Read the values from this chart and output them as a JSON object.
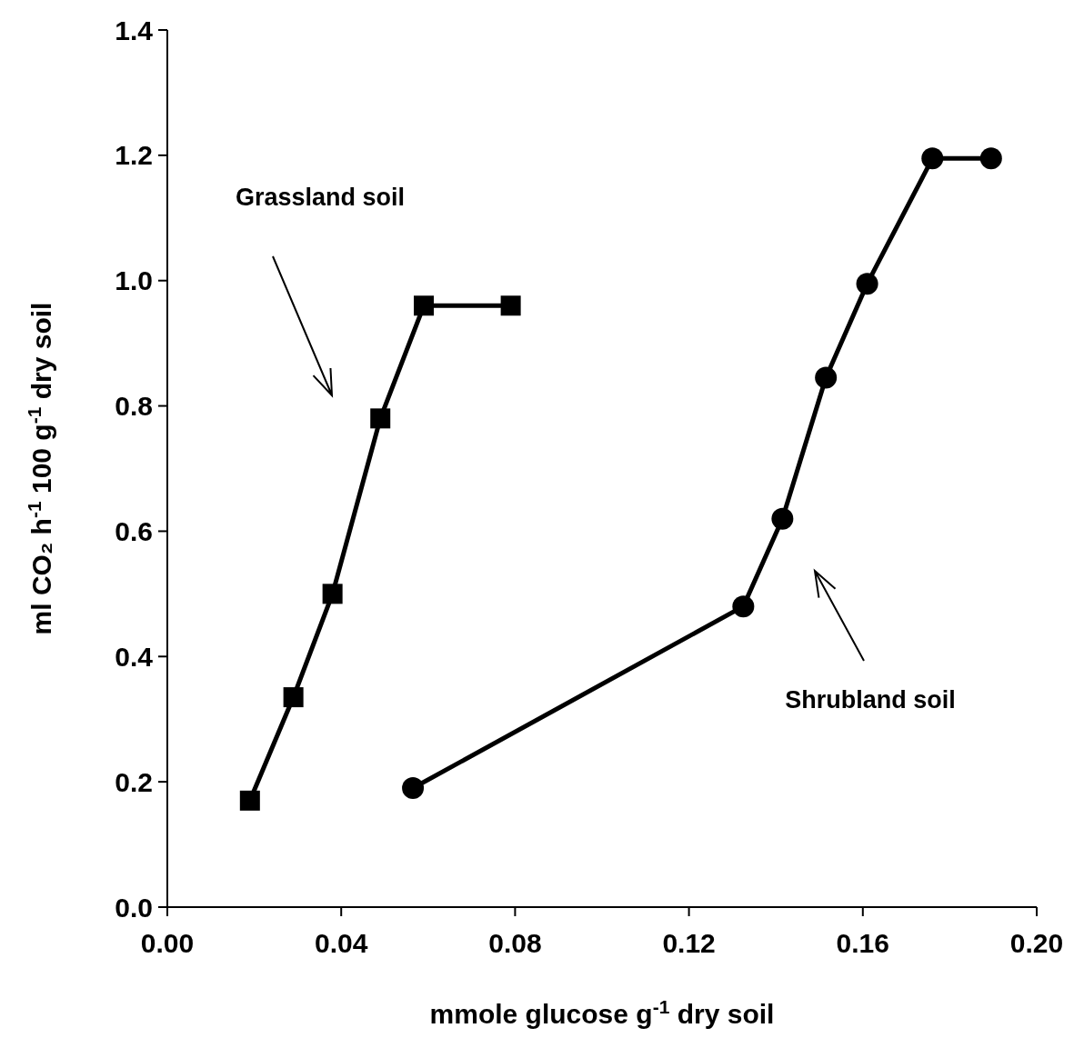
{
  "chart_data": {
    "type": "line",
    "xlabel": "mmole glucose g$^{-1}$ dry soil",
    "ylabel": "ml CO₂ h$^{-1}$ 100 g$^{-1}$ dry soil",
    "xlim": [
      0,
      0.2
    ],
    "xticks": [
      {
        "value": 0,
        "label": "0.00"
      },
      {
        "value": 0.04,
        "label": "0.04"
      },
      {
        "value": 0.08,
        "label": "0.08"
      },
      {
        "value": 0.12,
        "label": "0.12"
      },
      {
        "value": 0.16,
        "label": "0.16"
      },
      {
        "value": 0.2,
        "label": "0.20"
      }
    ],
    "ylim": [
      0,
      1.4
    ],
    "yticks": [
      {
        "value": 0,
        "label": "0.0"
      },
      0.2,
      0.4,
      0.6,
      0.8,
      {
        "value": 1,
        "label": "1.0"
      },
      1.2,
      1.4
    ],
    "grid": false,
    "line_style": "solid",
    "series": [
      {
        "color": "#000000",
        "marker": "square",
        "x": [
          0.019,
          0.029,
          0.038,
          0.049,
          0.059,
          0.079
        ],
        "values": [
          0.17,
          0.335,
          0.5,
          0.78,
          0.96,
          0.96
        ]
      },
      {
        "color": "#000000",
        "marker": "circle",
        "x": [
          0.0565,
          0.1325,
          0.1415,
          0.1515,
          0.161,
          0.176,
          0.1895
        ],
        "values": [
          0.19,
          0.48,
          0.62,
          0.845,
          0.995,
          1.195,
          1.195
        ]
      }
    ],
    "annotations": [
      "Grassland soil",
      "Shrubland soil"
    ]
  }
}
